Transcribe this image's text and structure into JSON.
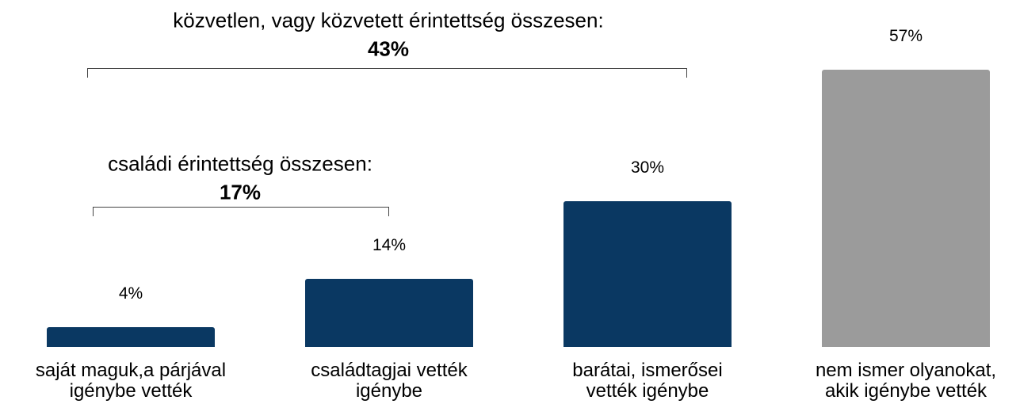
{
  "chart_data": {
    "type": "bar",
    "categories": [
      "saját maguk,a párjával\nigénybe vették",
      "családtagjai vették\nigénybe",
      "barátai, ismerősei\nvették igénybe",
      "nem ismer olyanokat,\nakik igénybe vették"
    ],
    "values": [
      4,
      14,
      30,
      57
    ],
    "value_labels": [
      "4%",
      "14%",
      "30%",
      "57%"
    ],
    "colors": [
      "#0a3862",
      "#0a3862",
      "#0a3862",
      "#9b9b9b"
    ],
    "annotations": [
      {
        "text": "családi érintettség összesen:",
        "total": "17%"
      },
      {
        "text": "közvetlen, vagy közvetett érintettség összesen:",
        "total": "43%"
      }
    ]
  }
}
